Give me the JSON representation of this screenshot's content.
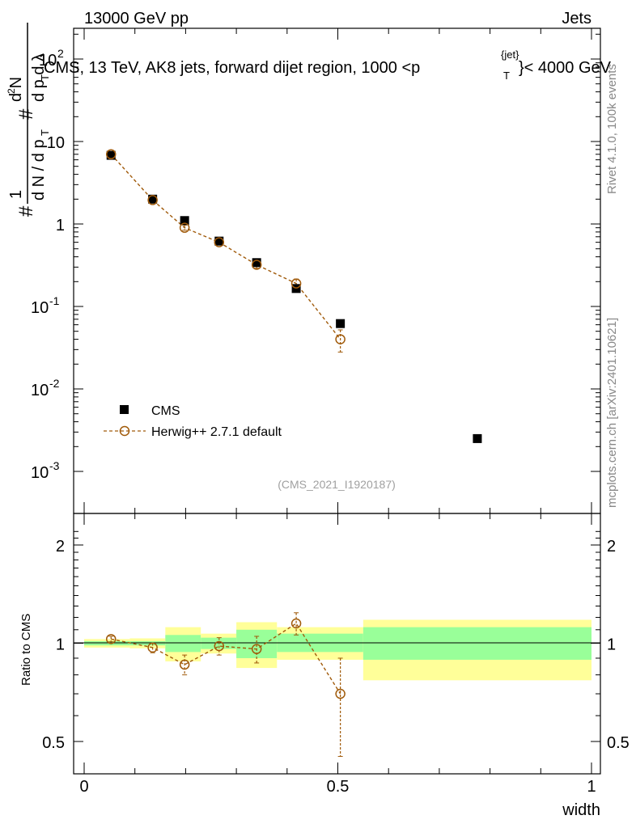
{
  "header": {
    "left": "13000 GeV pp",
    "right": "Jets",
    "title": "CMS, 13 TeV, AK8 jets, forward dijet region, 1000 <p",
    "title_sup": "{jet}",
    "title_sub": "T",
    "title_end": "}< 4000 GeV"
  },
  "side": {
    "rivet": "Rivet 4.1.0,  100k events",
    "mcplots": "mcplots.cern.ch [arXiv:2401.10621]"
  },
  "watermark": "(CMS_2021_I1920187)",
  "xlabel": "width",
  "ratio_ylabel": "Ratio to CMS",
  "legend": {
    "data": "CMS",
    "mc": "Herwig++ 2.7.1 default"
  },
  "colors": {
    "data": "#000000",
    "mc": "#a05a0a",
    "band_inner": "#99ff99",
    "band_outer": "#ffff99"
  },
  "chart_data": [
    {
      "type": "scatter",
      "title": "CMS, 13 TeV, AK8 jets, forward dijet region, 1000 < pT{jet} < 4000 GeV",
      "xlabel": "width",
      "ylabel": "1/dN/dpT  d2N/dpT dlambda",
      "yscale": "log",
      "xlim": [
        0,
        1
      ],
      "ylim": [
        0.0003,
        300
      ],
      "y_tick_labels": [
        "10^-3",
        "10^-2",
        "10^-1",
        "1",
        "10",
        "10^2"
      ],
      "x_tick_labels": [
        "0",
        "0.5",
        "1"
      ],
      "series": [
        {
          "name": "CMS",
          "x": [
            0.053,
            0.135,
            0.198,
            0.266,
            0.34,
            0.418,
            0.505,
            0.775
          ],
          "values": [
            6.8,
            2.0,
            1.1,
            0.62,
            0.34,
            0.165,
            0.062,
            0.0025
          ]
        },
        {
          "name": "Herwig++ 2.7.1 default",
          "x": [
            0.053,
            0.135,
            0.198,
            0.266,
            0.34,
            0.418,
            0.505
          ],
          "values": [
            7.0,
            1.95,
            0.9,
            0.6,
            0.32,
            0.19,
            0.04
          ],
          "err_lo": [
            6.6,
            1.85,
            0.84,
            0.56,
            0.29,
            0.165,
            0.028
          ],
          "err_hi": [
            7.4,
            2.05,
            0.97,
            0.65,
            0.35,
            0.215,
            0.052
          ]
        }
      ]
    },
    {
      "type": "line",
      "title": "Ratio to CMS",
      "xlabel": "width",
      "ylabel": "Ratio to CMS",
      "xlim": [
        0,
        1
      ],
      "ylim": [
        0.4,
        2.3
      ],
      "y_tick_labels": [
        "0.5",
        "1",
        "2"
      ],
      "x_tick_labels": [
        "0",
        "0.5",
        "1"
      ],
      "bands": [
        {
          "x0": 0.0,
          "x1": 0.09,
          "inner": [
            0.985,
            1.015
          ],
          "outer": [
            0.97,
            1.03
          ]
        },
        {
          "x0": 0.09,
          "x1": 0.16,
          "inner": [
            0.985,
            1.015
          ],
          "outer": [
            0.965,
            1.035
          ]
        },
        {
          "x0": 0.16,
          "x1": 0.23,
          "inner": [
            0.94,
            1.06
          ],
          "outer": [
            0.88,
            1.12
          ]
        },
        {
          "x0": 0.23,
          "x1": 0.3,
          "inner": [
            0.96,
            1.04
          ],
          "outer": [
            0.93,
            1.07
          ]
        },
        {
          "x0": 0.3,
          "x1": 0.38,
          "inner": [
            0.9,
            1.1
          ],
          "outer": [
            0.84,
            1.16
          ]
        },
        {
          "x0": 0.38,
          "x1": 0.55,
          "inner": [
            0.94,
            1.07
          ],
          "outer": [
            0.89,
            1.12
          ]
        },
        {
          "x0": 0.55,
          "x1": 1.0,
          "inner": [
            0.89,
            1.12
          ],
          "outer": [
            0.77,
            1.18
          ]
        }
      ],
      "series": [
        {
          "name": "Herwig++ 2.7.1 default",
          "x": [
            0.053,
            0.135,
            0.198,
            0.266,
            0.34,
            0.418,
            0.505
          ],
          "values": [
            1.03,
            0.97,
            0.86,
            0.98,
            0.96,
            1.15,
            0.7
          ],
          "err_lo": [
            1.01,
            0.935,
            0.8,
            0.92,
            0.87,
            1.06,
            0.45
          ],
          "err_hi": [
            1.05,
            1.0,
            0.92,
            1.04,
            1.05,
            1.24,
            0.9
          ]
        }
      ]
    }
  ]
}
